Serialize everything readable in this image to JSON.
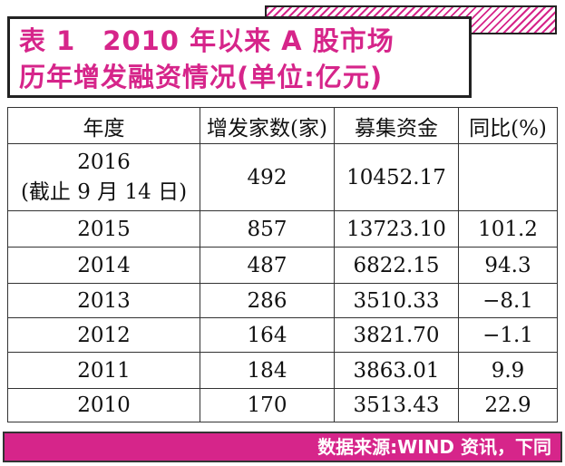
{
  "header": {
    "title_lines": [
      "表 1　2010 年以来 A 股市场",
      "历年增发融资情况(单位:亿元)"
    ]
  },
  "table": {
    "columns": [
      "年度",
      "增发家数(家)",
      "募集资金",
      "同比(%)"
    ],
    "rows": [
      {
        "year": "2016",
        "note": "(截止 9 月 14 日)",
        "companies": "492",
        "amount": "10452.17"
      },
      {
        "year": "2015",
        "companies": "857",
        "amount": "13723.10",
        "yoy": "101.2"
      },
      {
        "year": "2014",
        "companies": "487",
        "amount": "6822.15",
        "yoy": "94.3"
      },
      {
        "year": "2013",
        "companies": "286",
        "amount": "3510.33",
        "yoy": "−8.1"
      },
      {
        "year": "2012",
        "companies": "164",
        "amount": "3821.70",
        "yoy": "−1.1"
      },
      {
        "year": "2011",
        "companies": "184",
        "amount": "3863.01",
        "yoy": "9.9"
      },
      {
        "year": "2010",
        "companies": "170",
        "amount": "3513.43",
        "yoy": "22.9"
      }
    ]
  },
  "footer": {
    "source": "数据来源:WIND 资讯，下同"
  }
}
